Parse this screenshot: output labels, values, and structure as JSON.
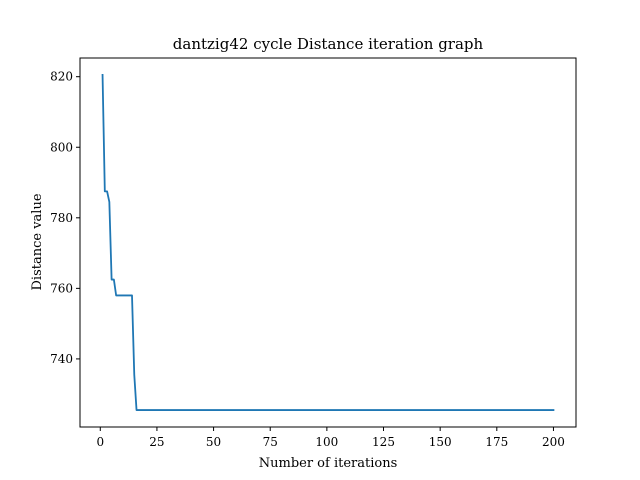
{
  "chart_data": {
    "type": "line",
    "title": "dantzig42 cycle Distance iteration graph",
    "xlabel": "Number of iterations",
    "ylabel": "Distance value",
    "xlim": [
      -8.95,
      209.95
    ],
    "ylim": [
      720.7,
      825.3
    ],
    "xticks": [
      0,
      25,
      50,
      75,
      100,
      125,
      150,
      175,
      200
    ],
    "yticks": [
      740,
      760,
      780,
      800,
      820
    ],
    "grid": false,
    "legend": "none",
    "colors": {
      "line": "#1f77b4",
      "axes": "#000000",
      "background": "#ffffff"
    },
    "series": [
      {
        "x": [
          1,
          2,
          3,
          4,
          5,
          6,
          7,
          8,
          9,
          10,
          11,
          12,
          13,
          14,
          15,
          16,
          17,
          50,
          100,
          150,
          200
        ],
        "y": [
          820.5,
          787.5,
          787.5,
          784.5,
          762.5,
          762.5,
          758,
          758,
          758,
          758,
          758,
          758,
          758,
          758,
          735.5,
          725.5,
          725.5,
          725.5,
          725.5,
          725.5,
          725.5
        ]
      }
    ]
  }
}
